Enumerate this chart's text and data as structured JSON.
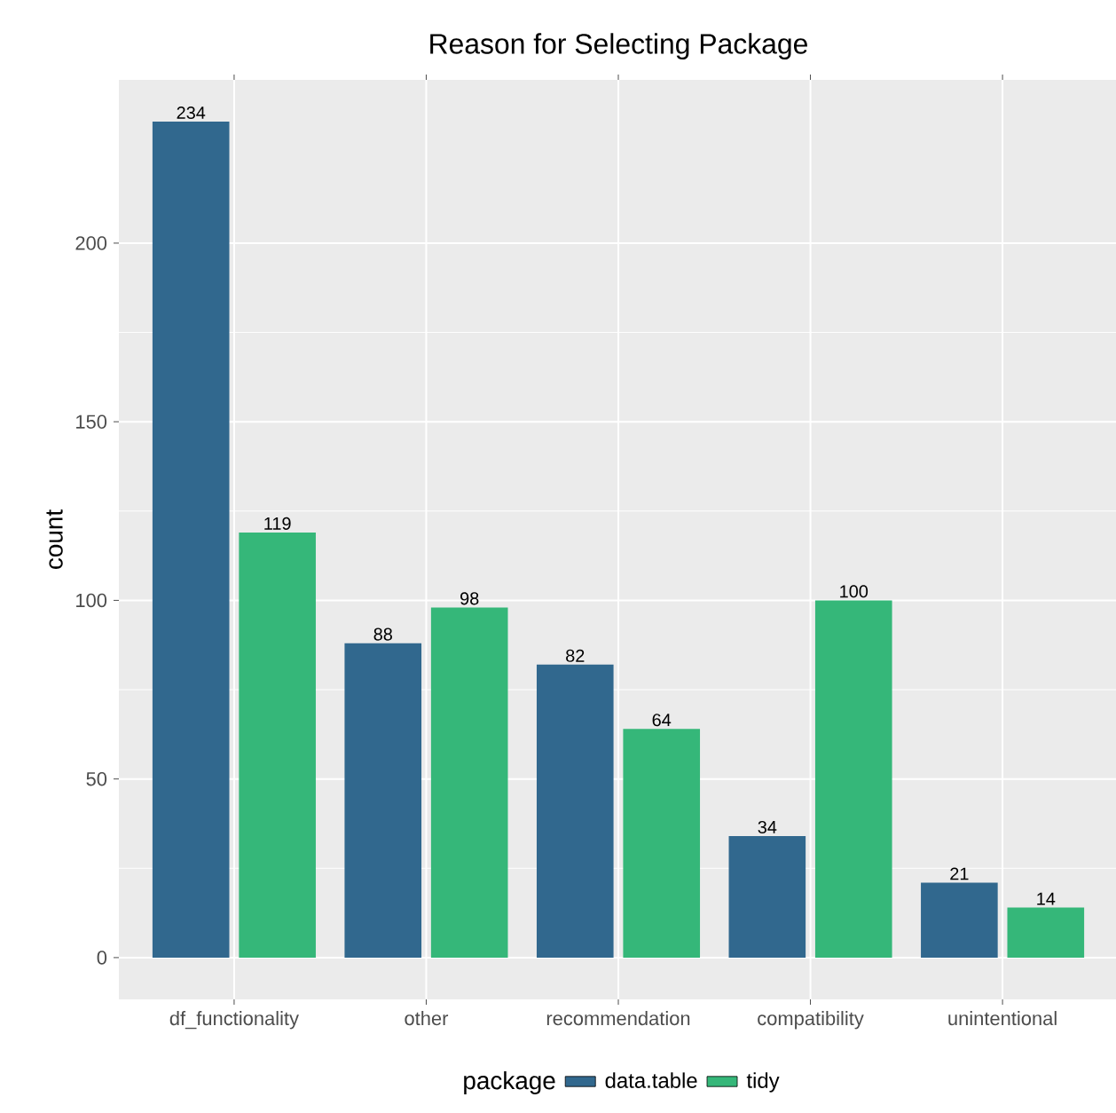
{
  "chart_data": {
    "type": "bar",
    "title": "Reason for Selecting Package",
    "ylabel": "count",
    "legend_title": "package",
    "categories": [
      "df_functionality",
      "other",
      "recommendation",
      "compatibility",
      "unintentional"
    ],
    "series": [
      {
        "name": "data.table",
        "color": "#31688e",
        "values": [
          234,
          88,
          82,
          34,
          21
        ]
      },
      {
        "name": "tidy",
        "color": "#35b779",
        "values": [
          119,
          98,
          64,
          100,
          14
        ]
      }
    ],
    "ylim": [
      -11.7,
      245.7
    ],
    "yticks": [
      0,
      50,
      100,
      150,
      200
    ],
    "grid": true,
    "legend": "bottom",
    "data_labels": true
  }
}
